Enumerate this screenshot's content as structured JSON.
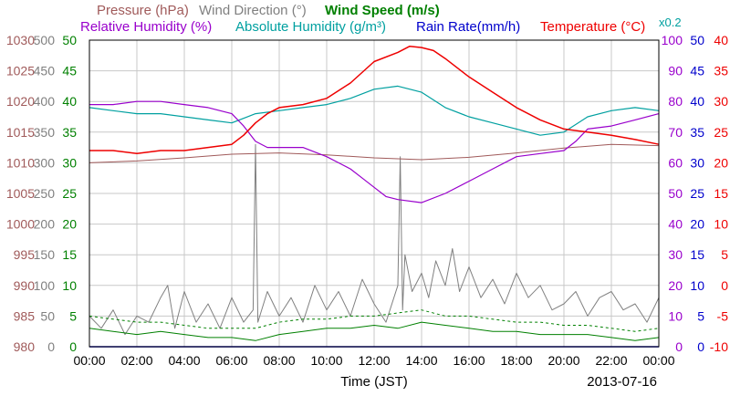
{
  "chart_data": {
    "type": "line",
    "date": "2013-07-16",
    "xlabel": "Time (JST)",
    "x_ticks": [
      "00:00",
      "02:00",
      "04:00",
      "06:00",
      "08:00",
      "10:00",
      "12:00",
      "14:00",
      "16:00",
      "18:00",
      "20:00",
      "22:00",
      "00:00"
    ],
    "x_range_hours": [
      0,
      24
    ],
    "grid": true,
    "legend": {
      "row1": [
        {
          "key": "pressure",
          "text": "Pressure (hPa)",
          "color": "#a05a5a"
        },
        {
          "key": "wind_direction",
          "text": "Wind Direction (°)",
          "color": "#808080"
        },
        {
          "key": "wind_speed",
          "text": "Wind Speed (m/s)",
          "color": "#008000"
        }
      ],
      "row2": [
        {
          "key": "relative_humidity",
          "text": "Relative Humidity (%)",
          "color": "#9900cc"
        },
        {
          "key": "absolute_humidity",
          "text": "Absolute Humidity (g/m³)",
          "color": "#00a0a0"
        },
        {
          "key": "rain_rate",
          "text": "Rain Rate(mm/h)",
          "color": "#0000cc"
        },
        {
          "key": "temperature",
          "text": "Temperature (°C)",
          "color": "#ee0000"
        }
      ],
      "abs_humidity_scale_note": "x0.2"
    },
    "axes": {
      "pressure": {
        "color": "#a05a5a",
        "min": 980,
        "max": 1030,
        "ticks": [
          "980",
          "985",
          "990",
          "995",
          "1000",
          "1005",
          "1010",
          "1015",
          "1020",
          "1025",
          "1030"
        ]
      },
      "wind_direction": {
        "color": "#808080",
        "min": 0,
        "max": 500,
        "ticks": [
          "0",
          "50",
          "100",
          "150",
          "200",
          "250",
          "300",
          "350",
          "400",
          "450",
          "500"
        ]
      },
      "wind_speed": {
        "color": "#008000",
        "min": 0,
        "max": 50,
        "ticks": [
          "0",
          "5",
          "10",
          "15",
          "20",
          "25",
          "30",
          "35",
          "40",
          "45",
          "50"
        ]
      },
      "relative_humidity": {
        "color": "#9900cc",
        "min": 0,
        "max": 100,
        "ticks": [
          "0",
          "10",
          "20",
          "30",
          "40",
          "50",
          "60",
          "70",
          "80",
          "90",
          "100"
        ]
      },
      "rain_rate": {
        "color": "#0000cc",
        "min": 0,
        "max": 50,
        "ticks": [
          "0",
          "5",
          "10",
          "15",
          "20",
          "25",
          "30",
          "35",
          "40",
          "45",
          "50"
        ]
      },
      "temperature": {
        "color": "#ee0000",
        "min": -10,
        "max": 40,
        "ticks": [
          "-10",
          "-5",
          "0",
          "5",
          "10",
          "15",
          "20",
          "25",
          "30",
          "35",
          "40"
        ]
      }
    },
    "series": [
      {
        "key": "temperature",
        "name": "Temperature (°C)",
        "axis": "temperature",
        "x": [
          0,
          1,
          2,
          3,
          4,
          5,
          6,
          6.5,
          7,
          7.5,
          8,
          9,
          10,
          11,
          12,
          13,
          13.5,
          14,
          14.5,
          15,
          16,
          17,
          18,
          19,
          20,
          21,
          22,
          23,
          24
        ],
        "y": [
          22,
          22,
          21.5,
          22,
          22,
          22.5,
          23,
          24.5,
          26.5,
          28,
          29,
          29.5,
          30.5,
          33,
          36.5,
          38,
          39,
          38.8,
          38.3,
          37,
          34,
          31.5,
          29,
          27,
          25.5,
          25,
          24.5,
          23.8,
          23
        ]
      },
      {
        "key": "absolute_humidity",
        "name": "Absolute Humidity (g/m³)",
        "axis": "relative_humidity",
        "x": [
          0,
          1,
          2,
          3,
          4,
          5,
          6,
          7,
          8,
          9,
          10,
          11,
          12,
          13,
          14,
          15,
          16,
          17,
          18,
          19,
          20,
          21,
          22,
          23,
          24
        ],
        "y": [
          78,
          77,
          76,
          76,
          75,
          74,
          73,
          76,
          77,
          78,
          79,
          81,
          84,
          85,
          83,
          78,
          75,
          73,
          71,
          69,
          70,
          75,
          77,
          78,
          77
        ]
      },
      {
        "key": "relative_humidity",
        "name": "Relative Humidity (%)",
        "axis": "relative_humidity",
        "x": [
          0,
          1,
          2,
          3,
          4,
          5,
          6,
          6.5,
          7,
          7.5,
          8,
          9,
          10,
          10.5,
          11,
          11.5,
          12,
          12.5,
          13,
          14,
          15,
          16,
          17,
          18,
          19,
          20,
          20.5,
          21,
          22,
          23,
          24
        ],
        "y": [
          79,
          79,
          80,
          80,
          79,
          78,
          76,
          72,
          67,
          65,
          65,
          65,
          62,
          60,
          58,
          55,
          52,
          49,
          48,
          47,
          50,
          54,
          58,
          62,
          63,
          64,
          67,
          71,
          72,
          74,
          76
        ]
      },
      {
        "key": "pressure",
        "name": "Pressure (hPa)",
        "axis": "pressure",
        "x": [
          0,
          2,
          4,
          6,
          8,
          10,
          12,
          14,
          16,
          18,
          20,
          22,
          24
        ],
        "y": [
          1010,
          1010.3,
          1010.8,
          1011.4,
          1011.6,
          1011.3,
          1010.8,
          1010.5,
          1010.9,
          1011.6,
          1012.4,
          1013,
          1012.8
        ]
      },
      {
        "key": "wind_direction",
        "name": "Wind Direction (°)",
        "axis": "wind_direction",
        "x": [
          0,
          0.5,
          1,
          1.5,
          2,
          2.5,
          3,
          3.3,
          3.6,
          4,
          4.5,
          5,
          5.5,
          6,
          6.5,
          6.9,
          7,
          7.1,
          7.5,
          8,
          8.5,
          9,
          9.5,
          10,
          10.5,
          11,
          11.5,
          12,
          12.5,
          13,
          13.1,
          13.2,
          13.3,
          13.6,
          14,
          14.3,
          14.6,
          15,
          15.3,
          15.6,
          16,
          16.5,
          17,
          17.5,
          18,
          18.5,
          19,
          19.5,
          20,
          20.5,
          21,
          21.5,
          22,
          22.5,
          23,
          23.5,
          24
        ],
        "y": [
          50,
          30,
          60,
          20,
          50,
          40,
          80,
          100,
          30,
          90,
          40,
          70,
          30,
          80,
          40,
          60,
          330,
          40,
          90,
          50,
          80,
          40,
          100,
          60,
          90,
          50,
          110,
          70,
          40,
          100,
          310,
          60,
          150,
          90,
          120,
          80,
          140,
          100,
          160,
          90,
          130,
          80,
          110,
          70,
          120,
          80,
          100,
          60,
          70,
          90,
          50,
          80,
          90,
          60,
          70,
          40,
          80
        ]
      },
      {
        "key": "wind_speed_avg",
        "name": "Wind Speed (m/s)",
        "axis": "wind_speed",
        "x": [
          0,
          1,
          2,
          3,
          4,
          5,
          6,
          7,
          8,
          9,
          10,
          11,
          12,
          13,
          14,
          15,
          16,
          17,
          18,
          19,
          20,
          21,
          22,
          23,
          24
        ],
        "y": [
          3,
          2.5,
          2,
          2.5,
          2,
          1.5,
          1.5,
          1,
          2,
          2.5,
          3,
          3,
          3.5,
          3,
          4,
          3.5,
          3,
          2.5,
          2.5,
          2,
          2,
          2,
          1.5,
          1,
          1.5
        ]
      },
      {
        "key": "wind_speed_gust",
        "name": "Wind Speed (m/s)",
        "axis": "wind_speed",
        "x": [
          0,
          1,
          2,
          3,
          4,
          5,
          6,
          7,
          8,
          9,
          10,
          11,
          12,
          13,
          14,
          15,
          16,
          17,
          18,
          19,
          20,
          21,
          22,
          23,
          24
        ],
        "y": [
          5,
          4.5,
          4,
          4,
          3.5,
          3,
          3,
          3,
          4,
          4.5,
          4.5,
          5,
          5,
          5.5,
          6,
          5,
          5,
          4.5,
          4,
          4,
          3.5,
          3.5,
          3,
          2.5,
          3
        ]
      },
      {
        "key": "rain_rate",
        "name": "Rain Rate(mm/h)",
        "axis": "rain_rate",
        "x": [
          0,
          24
        ],
        "y": [
          0,
          0
        ]
      }
    ]
  }
}
